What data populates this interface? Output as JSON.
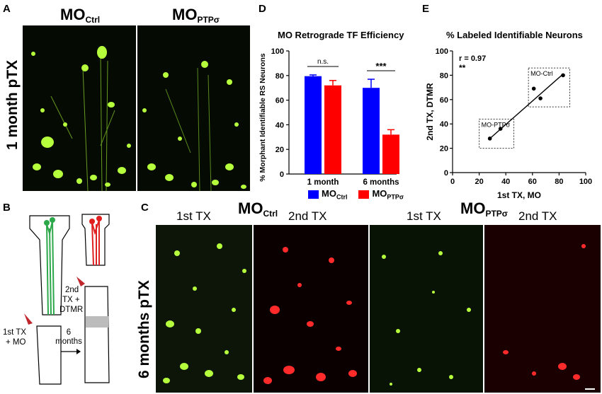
{
  "panels": {
    "a": "A",
    "b": "B",
    "c": "C",
    "d": "D",
    "e": "E"
  },
  "panel_a": {
    "title_ctrl_main": "MO",
    "title_ctrl_sub": "Ctrl",
    "title_ptp_main": "MO",
    "title_ptp_sub": "PTPσ",
    "row_label": "1 month pTX"
  },
  "panel_b": {
    "label_first": [
      "1st TX",
      "+ MO"
    ],
    "label_second": [
      "2nd",
      "TX +",
      "DTMR"
    ],
    "label_time": [
      "6",
      "months"
    ]
  },
  "panel_c": {
    "group_ctrl_main": "MO",
    "group_ctrl_sub": "Ctrl",
    "group_ptp_main": "MO",
    "group_ptp_sub": "PTPσ",
    "col_1": "1st TX",
    "col_2": "2nd TX",
    "col_3": "1st TX",
    "col_4": "2nd TX",
    "row_label": "6 months pTX"
  },
  "colors": {
    "ctrl": "#0000ff",
    "ptp": "#ff0000",
    "neuron_green": "#b6ff3c",
    "neuron_red": "#ff2a2a"
  },
  "chart_d": {
    "title": "MO Retrograde TF Efficiency",
    "ylabel": "% Morphant Identifiable RS Neurons",
    "legend_ctrl_main": "MO",
    "legend_ctrl_sub": "Ctrl",
    "legend_ptp_main": "MO",
    "legend_ptp_sub": "PTPσ",
    "sig_1": "n.s.",
    "sig_2": "***"
  },
  "chart_e": {
    "title": "% Labeled Identifiable Neurons",
    "xlabel": "1st TX, MO",
    "ylabel": "2nd TX, DTMR",
    "r_label": "r = 0.97",
    "sig": "**",
    "box_ctrl": "MO-Ctrl",
    "box_ptp": "MO-PTPσ"
  },
  "chart_data": [
    {
      "type": "bar",
      "title": "MO Retrograde TF Efficiency",
      "ylabel": "% Morphant Identifiable RS Neurons",
      "xlabel": "",
      "categories": [
        "1 month",
        "6 months"
      ],
      "series": [
        {
          "name": "MOCtrl",
          "values": [
            79.5,
            70
          ],
          "errors": [
            1,
            7
          ]
        },
        {
          "name": "MOPTPσ",
          "values": [
            72,
            32
          ],
          "errors": [
            4,
            4
          ]
        }
      ],
      "ylim": [
        0,
        100
      ],
      "yticks": [
        0,
        20,
        40,
        60,
        80,
        100
      ],
      "legend": "bottom"
    },
    {
      "type": "scatter",
      "title": "% Labeled Identifiable Neurons",
      "xlabel": "1st TX, MO",
      "ylabel": "2nd TX, DTMR",
      "points": [
        {
          "x": 28,
          "y": 28
        },
        {
          "x": 36,
          "y": 36
        },
        {
          "x": 61,
          "y": 69
        },
        {
          "x": 66,
          "y": 61
        },
        {
          "x": 83,
          "y": 80
        }
      ],
      "fit": [
        [
          28,
          28
        ],
        [
          83,
          81
        ]
      ],
      "xlim": [
        0,
        100
      ],
      "ylim": [
        0,
        100
      ],
      "xticks": [
        0,
        20,
        40,
        60,
        80,
        100
      ],
      "yticks": [
        0,
        20,
        40,
        60,
        80,
        100
      ]
    }
  ]
}
